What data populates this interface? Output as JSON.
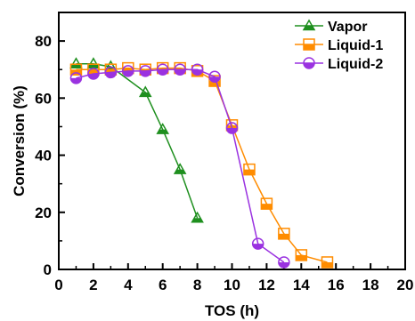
{
  "chart_data": {
    "type": "line",
    "xlabel": "TOS (h)",
    "ylabel": "Conversion (%)",
    "xlim": [
      0,
      20
    ],
    "ylim": [
      0,
      90
    ],
    "xticks": [
      0,
      2,
      4,
      6,
      8,
      10,
      12,
      14,
      16,
      18,
      20
    ],
    "yticks": [
      0,
      20,
      40,
      60,
      80
    ],
    "grid": false,
    "legend_position": "top-right",
    "series": [
      {
        "name": "Vapor",
        "color": "#1e8f1e",
        "marker": "triangle-open-lower-half",
        "x": [
          1,
          2,
          3,
          5,
          6,
          7,
          8
        ],
        "y": [
          72,
          72,
          71,
          62,
          49,
          35,
          18
        ]
      },
      {
        "name": "Liquid-1",
        "color": "#ff8c00",
        "marker": "square-open-lower-half",
        "x": [
          1,
          2,
          3,
          4,
          5,
          6,
          7,
          8,
          9,
          10,
          11,
          12,
          13,
          14,
          15.5
        ],
        "y": [
          70,
          70,
          70,
          70.5,
          70,
          70.5,
          70.5,
          69.5,
          66,
          50.5,
          35,
          23,
          12.5,
          5,
          2.5
        ]
      },
      {
        "name": "Liquid-2",
        "color": "#9a32e0",
        "marker": "circle-open-lower-half",
        "x": [
          1,
          2,
          3,
          4,
          5,
          6,
          7,
          8,
          9,
          10,
          11.5,
          13
        ],
        "y": [
          67,
          68.5,
          69,
          69.5,
          69.5,
          70,
          70,
          70,
          67.5,
          49.5,
          9,
          2.5
        ]
      }
    ]
  }
}
